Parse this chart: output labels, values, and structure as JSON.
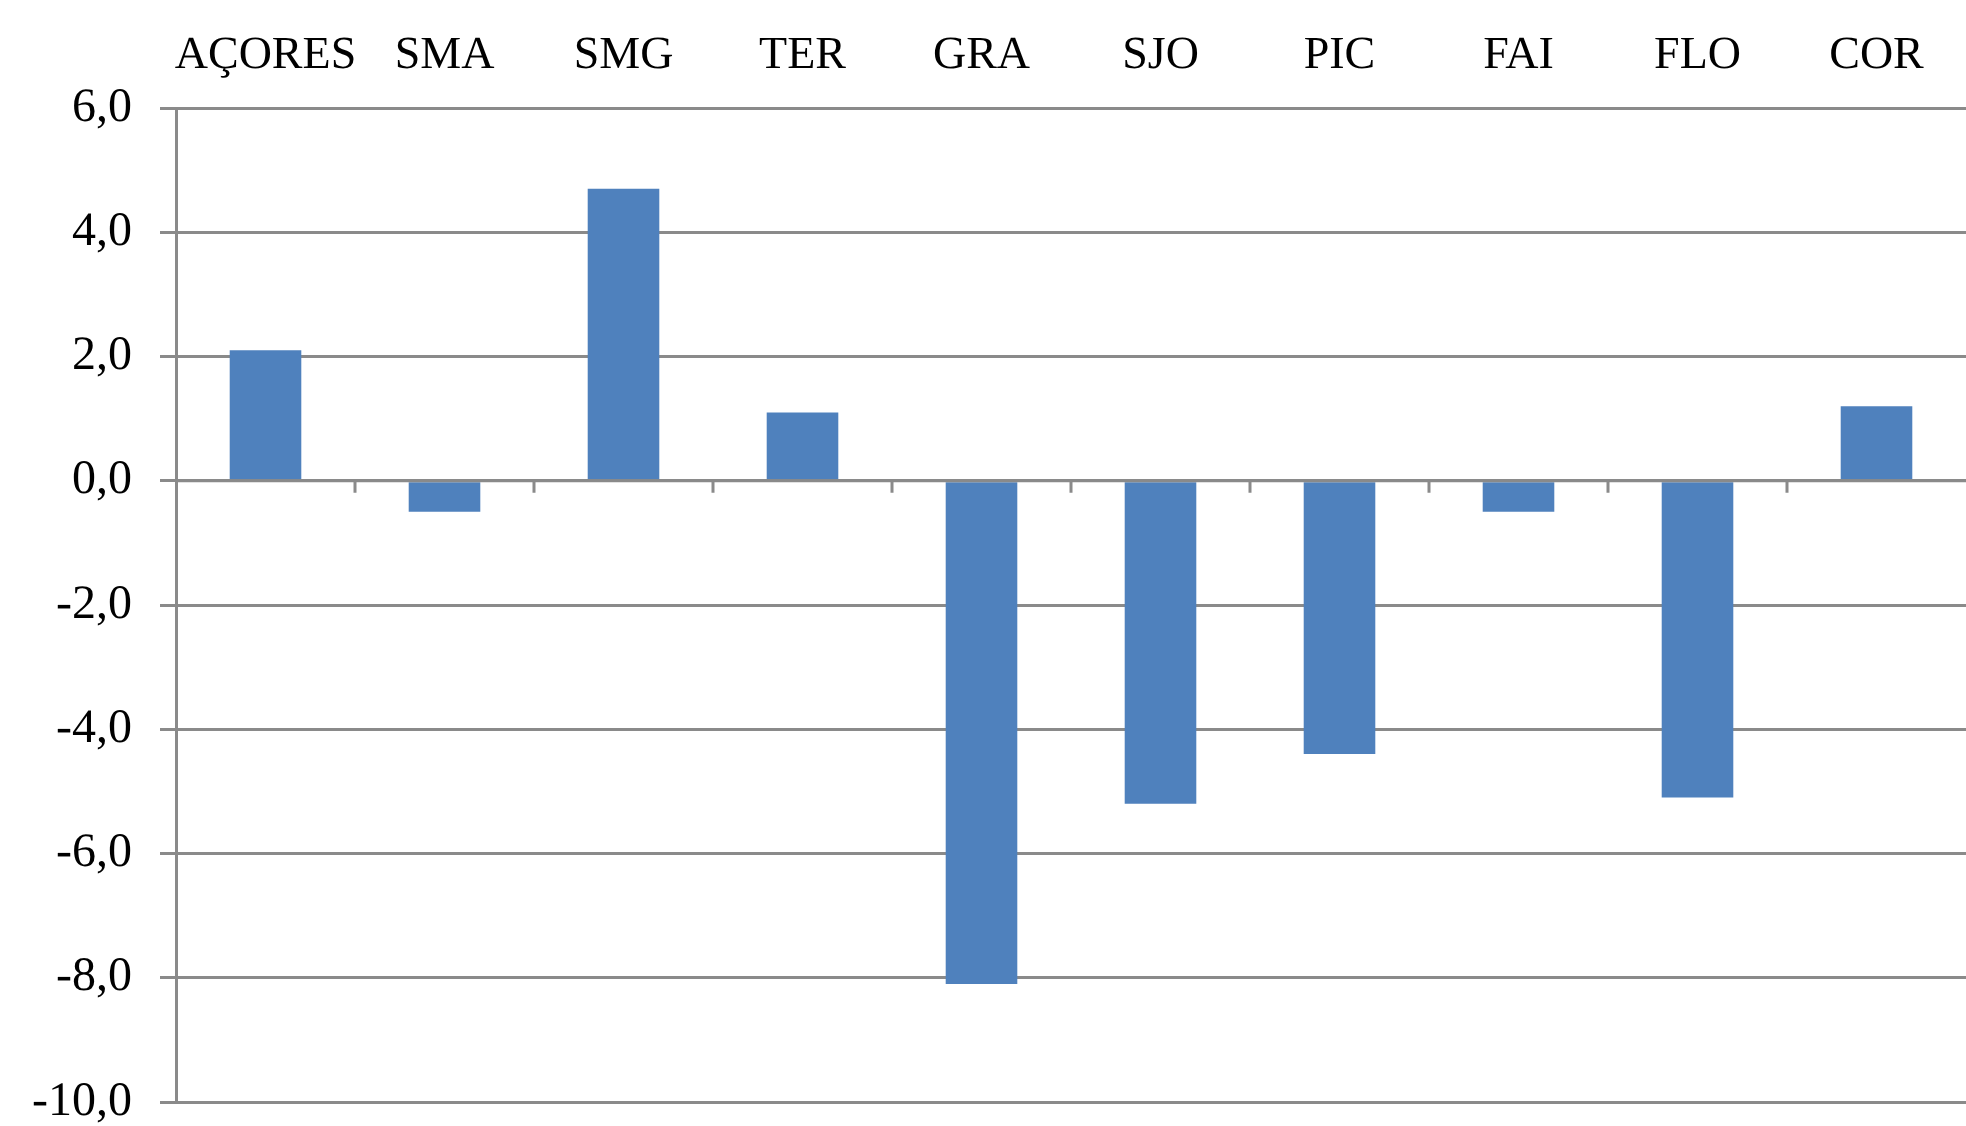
{
  "chart_data": {
    "type": "bar",
    "categories": [
      "AÇORES",
      "SMA",
      "SMG",
      "TER",
      "GRA",
      "SJO",
      "PIC",
      "FAI",
      "FLO",
      "COR"
    ],
    "values": [
      2.1,
      -0.5,
      4.7,
      1.1,
      -8.1,
      -5.2,
      -4.4,
      -0.5,
      -5.1,
      1.2
    ],
    "color": "#4f81bd",
    "ylim": [
      -10,
      6
    ],
    "yticks": [
      {
        "value": 6,
        "label": "6,0"
      },
      {
        "value": 4,
        "label": "4,0"
      },
      {
        "value": 2,
        "label": "2,0"
      },
      {
        "value": 0,
        "label": "0,0"
      },
      {
        "value": -2,
        "label": "-2,0"
      },
      {
        "value": -4,
        "label": "-4,0"
      },
      {
        "value": -6,
        "label": "-6,0"
      },
      {
        "value": -8,
        "label": "-8,0"
      },
      {
        "value": -10,
        "label": "-10,0"
      }
    ],
    "grid": "y"
  }
}
